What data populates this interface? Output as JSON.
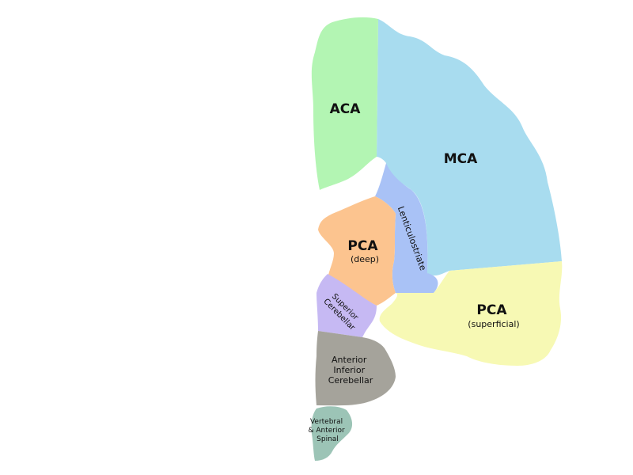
{
  "regions": {
    "aca": {
      "lines": [
        "ACA"
      ],
      "color": "#b3f5b3"
    },
    "mca": {
      "lines": [
        "MCA"
      ],
      "color": "#a8dcef"
    },
    "lenticulostriate": {
      "lines": [
        "Lenticulostriate"
      ],
      "color": "#a9c2f6"
    },
    "pca_deep": {
      "lines": [
        "PCA",
        "(deep)"
      ],
      "color": "#fcc48f"
    },
    "pca_superficial": {
      "lines": [
        "PCA",
        "(superficial)"
      ],
      "color": "#f7f9b4"
    },
    "superior_cerebellar": {
      "lines": [
        "Superior",
        "Cerebellar"
      ],
      "color": "#c6b9f3"
    },
    "aica": {
      "lines": [
        "Anterior",
        "Inferior",
        "Cerebellar"
      ],
      "color": "#a5a39b"
    },
    "vertebral": {
      "lines": [
        "Vertebral",
        "& Anterior",
        "Spinal"
      ],
      "color": "#9cc4b6"
    }
  }
}
